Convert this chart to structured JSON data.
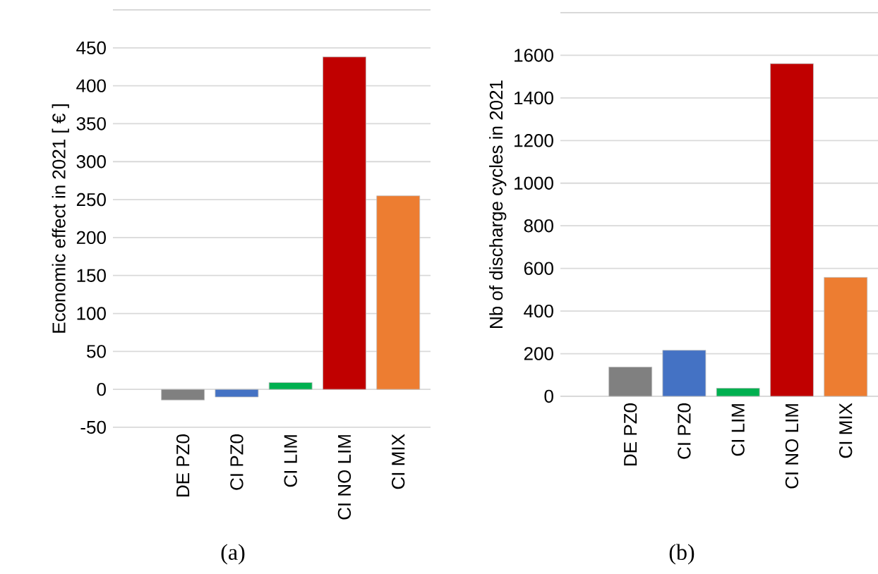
{
  "chart_data": [
    {
      "type": "bar",
      "categories": [
        "DE PZ0",
        "CI PZ0",
        "CI LIM",
        "CI NO LIM",
        "CI MIX"
      ],
      "values": [
        -14,
        -10,
        9,
        438,
        255
      ],
      "colors": [
        "#808080",
        "#4472c4",
        "#00b050",
        "#c00000",
        "#ed7d31"
      ],
      "ylabel": "Economic effect in 2021 [ € ]",
      "ylim": [
        -50,
        500
      ],
      "yticks": [
        -50,
        0,
        50,
        100,
        150,
        200,
        250,
        300,
        350,
        400,
        450,
        {
          "value": 500,
          "label": null
        }
      ],
      "grid": "y",
      "annotations": [
        "(a)"
      ]
    },
    {
      "type": "bar",
      "categories": [
        "DE PZ0",
        "CI PZ0",
        "CI LIM",
        "CI NO LIM",
        "CI MIX"
      ],
      "values": [
        137,
        216,
        38,
        1561,
        558
      ],
      "colors": [
        "#808080",
        "#4472c4",
        "#00b050",
        "#c00000",
        "#ed7d31"
      ],
      "ylabel": "Nb of discharge cycles in 2021",
      "ylim": [
        0,
        1800
      ],
      "yticks": [
        0,
        200,
        400,
        600,
        800,
        1000,
        1200,
        1400,
        1600,
        {
          "value": 1800,
          "label": null
        }
      ],
      "grid": "y",
      "annotations": [
        "(b)"
      ]
    }
  ]
}
